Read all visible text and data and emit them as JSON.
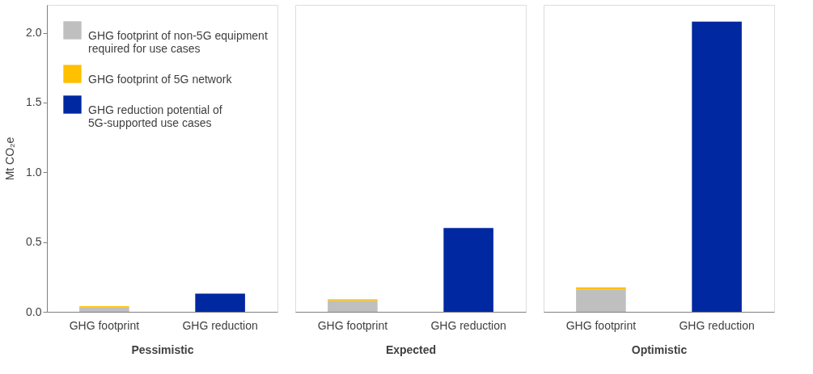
{
  "chart_data": [
    {
      "type": "bar",
      "stacked": true,
      "categories": [
        "GHG footprint",
        "GHG reduction"
      ],
      "xlabel": "Pessimistic",
      "ylabel": "Mt CO₂e",
      "ylim": [
        0,
        2.2
      ],
      "yticks": [
        {
          "value": 0,
          "label": "0.0"
        },
        0.5,
        {
          "value": 1,
          "label": "1.0"
        },
        1.5,
        {
          "value": 2,
          "label": "2.0"
        }
      ],
      "grid": false,
      "legend": "top left",
      "series": [
        {
          "name": "GHG footprint of non-5G equipment required for use cases",
          "color": "#bfbfbf",
          "values": [
            0.03,
            null
          ]
        },
        {
          "name": "GHG footprint of 5G network",
          "color": "#ffc000",
          "values": [
            0.01,
            null
          ]
        },
        {
          "name": "GHG reduction potential of 5G-supported use cases",
          "color": "#0028a0",
          "values": [
            null,
            0.13
          ]
        }
      ]
    },
    {
      "type": "bar",
      "stacked": true,
      "categories": [
        "GHG footprint",
        "GHG reduction"
      ],
      "xlabel": "Expected",
      "ylim": [
        0,
        2.2
      ],
      "grid": false,
      "tick_labels": "x",
      "series": [
        {
          "color": "#bfbfbf",
          "values": [
            0.08,
            null
          ]
        },
        {
          "color": "#ffc000",
          "values": [
            0.01,
            null
          ]
        },
        {
          "color": "#0028a0",
          "values": [
            null,
            0.6
          ]
        }
      ]
    },
    {
      "type": "bar",
      "stacked": true,
      "categories": [
        "GHG footprint",
        "GHG reduction"
      ],
      "xlabel": "Optimistic",
      "ylim": [
        0,
        2.2
      ],
      "grid": false,
      "tick_labels": "x",
      "series": [
        {
          "color": "#bfbfbf",
          "values": [
            0.16,
            null
          ]
        },
        {
          "color": "#ffc000",
          "values": [
            0.015,
            null
          ]
        },
        {
          "color": "#0028a0",
          "values": [
            null,
            2.08
          ]
        }
      ]
    }
  ]
}
